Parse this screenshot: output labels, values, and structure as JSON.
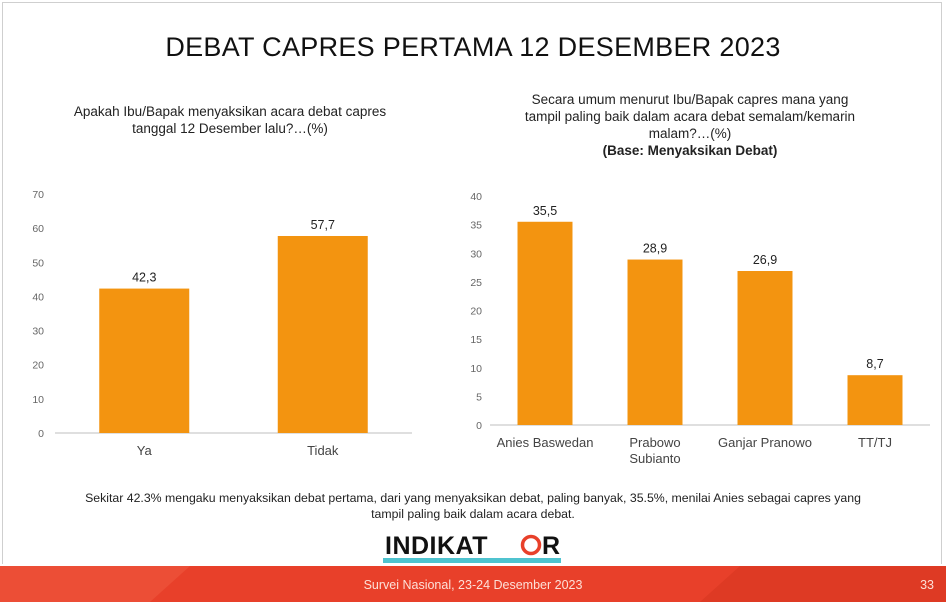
{
  "slide_title": "DEBAT CAPRES PERTAMA 12 DESEMBER 2023",
  "left_chart": {
    "question_line1": "Apakah Ibu/Bapak menyaksikan acara debat capres",
    "question_line2": "tanggal 12 Desember lalu?…(%)"
  },
  "right_chart": {
    "question_line1": "Secara umum menurut Ibu/Bapak capres mana yang",
    "question_line2": "tampil paling baik dalam acara debat semalam/kemarin",
    "question_line3": "malam?…(%)",
    "base": "(Base: Menyaksikan Debat)"
  },
  "note_line1": "Sekitar 42.3% mengaku menyaksikan debat pertama, dari yang menyaksikan debat, paling banyak, 35.5%, menilai Anies sebagai capres yang",
  "note_line2": "tampil paling baik dalam acara debat.",
  "logo": {
    "text_left": "INDIKAT",
    "text_right": "R"
  },
  "footer": {
    "survey": "Survei Nasional, 23-24 Desember 2023",
    "page": "33"
  },
  "colors": {
    "bar": "#f39410",
    "footer": "#e8402a",
    "logo_ring": "#e8402a",
    "logo_bar": "#4fc3cf"
  },
  "chart_data": [
    {
      "type": "bar",
      "categories": [
        "Ya",
        "Tidak"
      ],
      "category_lines": [
        [
          "Ya"
        ],
        [
          "Tidak"
        ]
      ],
      "values": [
        42.3,
        57.7
      ],
      "value_labels": [
        "42,3",
        "57,7"
      ],
      "ylim": [
        0,
        70
      ],
      "yticks": [
        0,
        10,
        20,
        30,
        40,
        50,
        60,
        70
      ],
      "grid": false
    },
    {
      "type": "bar",
      "categories": [
        "Anies Baswedan",
        "Prabowo Subianto",
        "Ganjar Pranowo",
        "TT/TJ"
      ],
      "category_lines": [
        [
          "Anies Baswedan"
        ],
        [
          "Prabowo",
          "Subianto"
        ],
        [
          "Ganjar Pranowo"
        ],
        [
          "TT/TJ"
        ]
      ],
      "values": [
        35.5,
        28.9,
        26.9,
        8.7
      ],
      "value_labels": [
        "35,5",
        "28,9",
        "26,9",
        "8,7"
      ],
      "ylim": [
        0,
        40
      ],
      "yticks": [
        0,
        5,
        10,
        15,
        20,
        25,
        30,
        35,
        40
      ],
      "grid": false
    }
  ]
}
